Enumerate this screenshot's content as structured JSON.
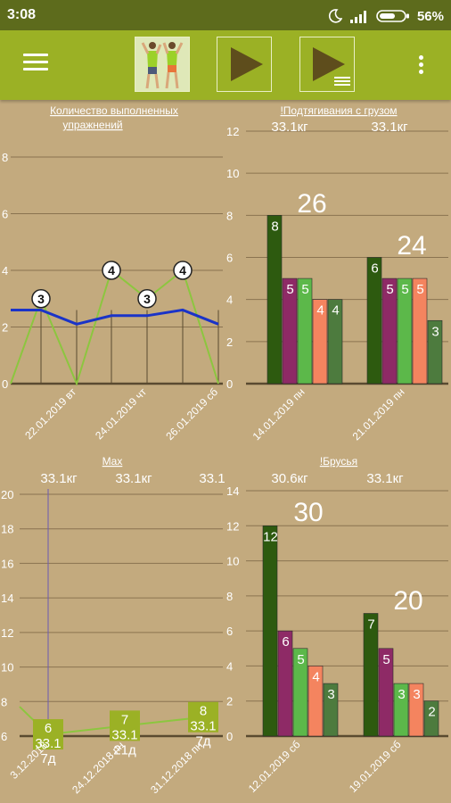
{
  "status_bar": {
    "time": "3:08",
    "battery": "56%",
    "icons": [
      "moon-icon",
      "signal-icon",
      "battery-icon"
    ]
  },
  "toolbar": {
    "menu_icon": "hamburger-icon",
    "buttons": [
      "exercise-image-button",
      "play-button",
      "play-list-button"
    ],
    "overflow_icon": "more-vert-icon"
  },
  "colors": {
    "accent": "#9bb125",
    "background": "#c3aa7e",
    "line_dark_blue": "#1a33c8",
    "line_green": "#8cc63f"
  },
  "chart_data": [
    {
      "type": "line",
      "title": "Количество выполненных упражнений",
      "ylim": [
        0,
        8
      ],
      "y_ticks": [
        "0",
        "2",
        "4",
        "6",
        "8"
      ],
      "x_labels": [
        "22.01.2019 вт",
        "24.01.2019 чт",
        "26.01.2019 сб"
      ],
      "series": [
        {
          "values": [
            0,
            3,
            0,
            4,
            3,
            4,
            0
          ],
          "point_labels": [
            "",
            "3",
            "",
            "4",
            "3",
            "4",
            ""
          ],
          "color": "#8cc63f"
        },
        {
          "values": [
            2.6,
            2.6,
            2.1,
            2.4,
            2.4,
            2.6,
            2.1
          ],
          "color": "#1a33c8"
        }
      ]
    },
    {
      "type": "bar",
      "title": "!Подтягивания с грузом",
      "ylim": [
        0,
        12
      ],
      "y_ticks": [
        "0",
        "2",
        "4",
        "6",
        "8",
        "10",
        "12"
      ],
      "groups": [
        {
          "label": "14.01.2019 пн",
          "weight": "33.1кг",
          "total": "26",
          "values": [
            8,
            5,
            5,
            4,
            4
          ]
        },
        {
          "label": "21.01.2019 пн",
          "weight": "33.1кг",
          "total": "24",
          "values": [
            6,
            5,
            5,
            5,
            3
          ]
        }
      ],
      "bar_colors": [
        "#2d5a0f",
        "#8e2a66",
        "#5cb84a",
        "#f4845f",
        "#4d7b3e"
      ]
    },
    {
      "type": "line",
      "title": "Max",
      "ylim": [
        6,
        20
      ],
      "y_ticks": [
        "6",
        "8",
        "10",
        "12",
        "14",
        "16",
        "18",
        "20"
      ],
      "x_labels": [
        "3.12.2018",
        "24.12.2018 пн",
        "31.12.2018 пн"
      ],
      "weights": [
        "33.1кг",
        "33.1кг",
        "33.1"
      ],
      "series": [
        {
          "values": [
            7.7,
            6.1,
            6.6,
            7.1
          ],
          "color": "#8cc63f"
        }
      ],
      "markers": [
        {
          "reps": "6",
          "weight": "33.1",
          "days": "7д"
        },
        {
          "reps": "7",
          "weight": "33.1",
          "days": "21д"
        },
        {
          "reps": "8",
          "weight": "33.1",
          "days": "7д"
        }
      ]
    },
    {
      "type": "bar",
      "title": "!Брусья",
      "ylim": [
        0,
        14
      ],
      "y_ticks": [
        "0",
        "2",
        "4",
        "6",
        "8",
        "10",
        "12",
        "14"
      ],
      "groups": [
        {
          "label": "12.01.2019 сб",
          "weight": "30.6кг",
          "total": "30",
          "values": [
            12,
            6,
            5,
            4,
            3
          ]
        },
        {
          "label": "19.01.2019 сб",
          "weight": "33.1кг",
          "total": "20",
          "values": [
            7,
            5,
            3,
            3,
            2
          ]
        }
      ],
      "bar_colors": [
        "#2d5a0f",
        "#8e2a66",
        "#5cb84a",
        "#f4845f",
        "#4d7b3e"
      ]
    }
  ]
}
